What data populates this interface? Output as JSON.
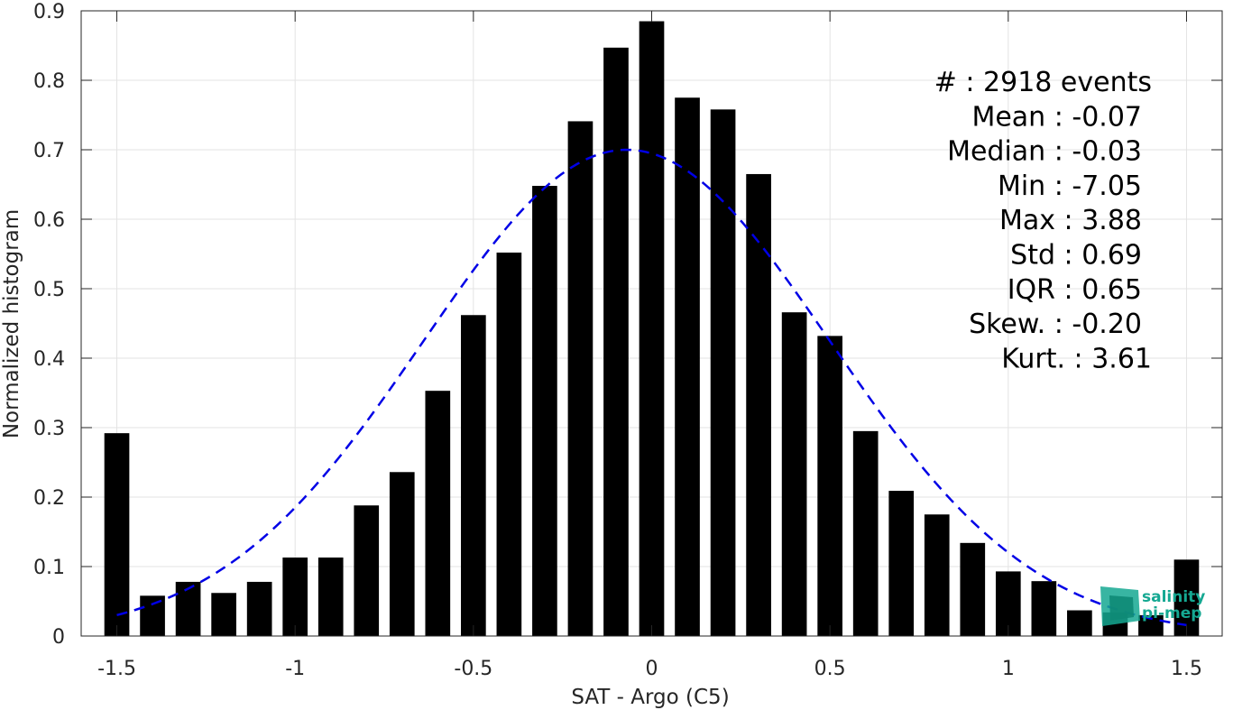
{
  "chart_data": {
    "type": "bar",
    "x": [
      -1.5,
      -1.4,
      -1.3,
      -1.2,
      -1.1,
      -1.0,
      -0.9,
      -0.8,
      -0.7,
      -0.6,
      -0.5,
      -0.4,
      -0.3,
      -0.2,
      -0.1,
      0.0,
      0.1,
      0.2,
      0.3,
      0.4,
      0.5,
      0.6,
      0.7,
      0.8,
      0.9,
      1.0,
      1.1,
      1.2,
      1.3,
      1.4,
      1.5
    ],
    "values": [
      0.292,
      0.058,
      0.078,
      0.062,
      0.078,
      0.113,
      0.113,
      0.188,
      0.236,
      0.353,
      0.462,
      0.552,
      0.648,
      0.741,
      0.847,
      0.885,
      0.775,
      0.758,
      0.665,
      0.466,
      0.432,
      0.295,
      0.209,
      0.175,
      0.134,
      0.093,
      0.079,
      0.037,
      0.034,
      0.03,
      0.11
    ],
    "fit": {
      "type": "gaussian",
      "mean": -0.07,
      "std": 0.57,
      "peak": 0.7
    },
    "xlabel": "SAT - Argo (C5)",
    "ylabel": "Normalized histogram",
    "xlim": [
      -1.6,
      1.6
    ],
    "ylim": [
      0,
      0.9
    ],
    "xticks": [
      -1.5,
      -1,
      -0.5,
      0,
      0.5,
      1,
      1.5
    ],
    "xtick_labels": [
      "-1.5",
      "-1",
      "-0.5",
      "0",
      "0.5",
      "1",
      "1.5"
    ],
    "yticks": [
      0,
      0.1,
      0.2,
      0.3,
      0.4,
      0.5,
      0.6,
      0.7,
      0.8,
      0.9
    ],
    "ytick_labels": [
      "0",
      "0.1",
      "0.2",
      "0.3",
      "0.4",
      "0.5",
      "0.6",
      "0.7",
      "0.8",
      "0.9"
    ],
    "grid": true,
    "bar_color": "#000000",
    "fit_color": "#0000e6",
    "fit_style": "dashed"
  },
  "stats": {
    "lines": [
      "#  : 2918 events",
      "Mean : -0.07",
      "Median : -0.03",
      "Min : -7.05",
      "Max : 3.88",
      "Std : 0.69",
      "IQR : 0.65",
      "Skew. : -0.20",
      "Kurt. : 3.61"
    ]
  },
  "logo": {
    "line1": "salinity",
    "line2": "pi-mep",
    "color": "#15a892"
  }
}
